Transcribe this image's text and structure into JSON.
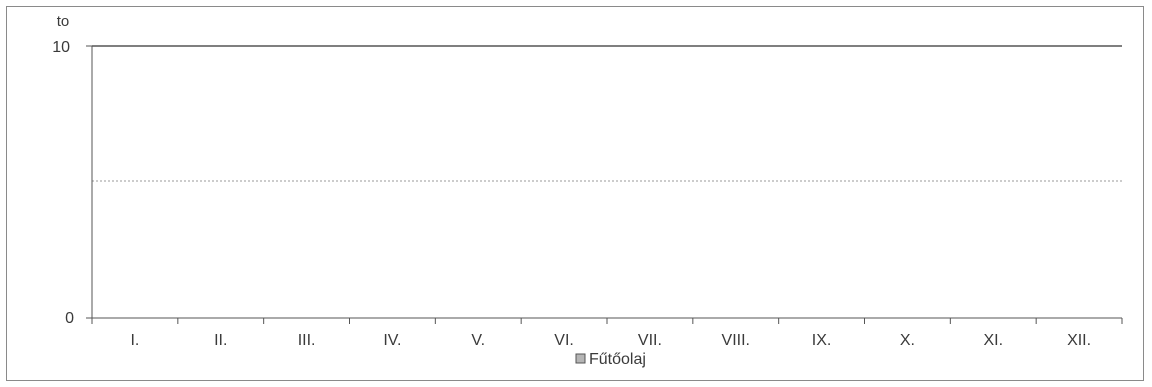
{
  "chart_data": {
    "type": "bar",
    "title": "",
    "xlabel": "",
    "ylabel": "to",
    "ylim": [
      0,
      10
    ],
    "y_ticks": [
      "0",
      "10"
    ],
    "gridline_value": 5,
    "categories": [
      "I.",
      "II.",
      "III.",
      "IV.",
      "V.",
      "VI.",
      "VII.",
      "VIII.",
      "IX.",
      "X.",
      "XI.",
      "XII."
    ],
    "series": [
      {
        "name": "Fűtőolaj",
        "values": [
          0,
          0,
          0,
          0,
          0,
          0,
          0,
          0,
          0,
          0,
          0,
          0
        ],
        "color": "#b5b5b5"
      }
    ],
    "legend_position": "bottom",
    "grid": true
  }
}
